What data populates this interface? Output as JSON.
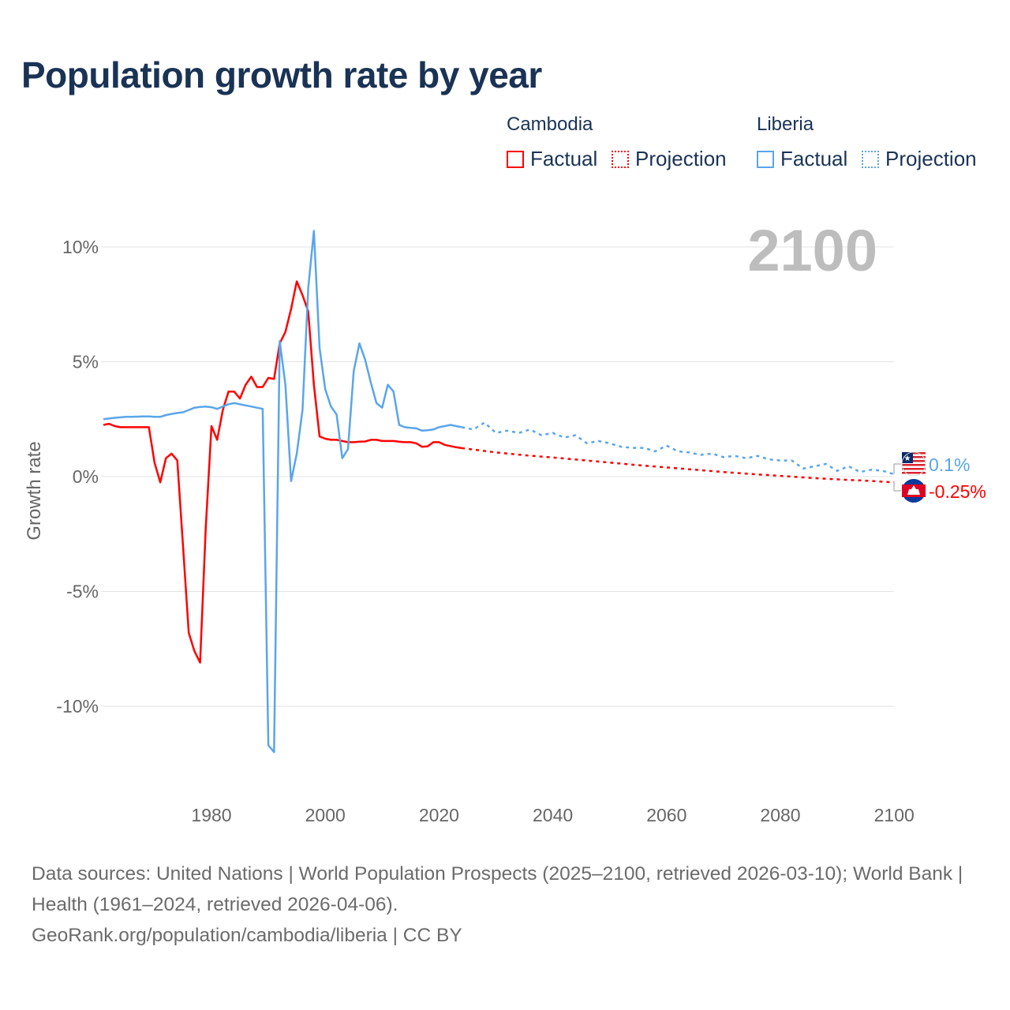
{
  "chart_data": {
    "type": "line",
    "title": "Population growth rate by year",
    "ylabel": "Growth rate",
    "xlabel": "",
    "xlim": [
      1961,
      2100
    ],
    "ylim": [
      -12.5,
      11
    ],
    "x_ticks": [
      1980,
      2000,
      2020,
      2040,
      2060,
      2080,
      2100
    ],
    "x_tick_labels": [
      "1980",
      "2000",
      "2020",
      "2040",
      "2060",
      "2080",
      "2100"
    ],
    "y_ticks": [
      10,
      5,
      0,
      -5,
      -10
    ],
    "y_tick_labels": [
      "10%",
      "5%",
      "0%",
      "-5%",
      "-10%"
    ],
    "grid": true,
    "year_watermark": "2100",
    "legend": {
      "placement": "top-right",
      "groups": [
        {
          "name": "Cambodia",
          "color": "#ff0000",
          "factual": "Factual",
          "projection": "Projection"
        },
        {
          "name": "Liberia",
          "color": "#5aa5ea",
          "factual": "Factual",
          "projection": "Projection"
        }
      ]
    },
    "series": [
      {
        "name": "Cambodia",
        "color": "#ff0000",
        "end_label": "-0.25%",
        "factual": {
          "x": [
            1961,
            1962,
            1963,
            1964,
            1965,
            1966,
            1967,
            1968,
            1969,
            1970,
            1971,
            1972,
            1973,
            1974,
            1975,
            1976,
            1977,
            1978,
            1979,
            1980,
            1981,
            1982,
            1983,
            1984,
            1985,
            1986,
            1987,
            1988,
            1989,
            1990,
            1991,
            1992,
            1993,
            1994,
            1995,
            1996,
            1997,
            1998,
            1999,
            2000,
            2001,
            2002,
            2003,
            2004,
            2005,
            2006,
            2007,
            2008,
            2009,
            2010,
            2011,
            2012,
            2013,
            2014,
            2015,
            2016,
            2017,
            2018,
            2019,
            2020,
            2021,
            2022,
            2023,
            2024
          ],
          "y": [
            2.25,
            2.3,
            2.2,
            2.15,
            2.15,
            2.15,
            2.15,
            2.15,
            2.15,
            0.6,
            -0.25,
            0.8,
            1.0,
            0.7,
            -3.0,
            -6.8,
            -7.6,
            -8.1,
            -2.2,
            2.2,
            1.6,
            2.9,
            3.7,
            3.7,
            3.4,
            4.0,
            4.35,
            3.9,
            3.9,
            4.3,
            4.25,
            5.8,
            6.3,
            7.3,
            8.5,
            7.9,
            7.2,
            4.0,
            1.75,
            1.65,
            1.6,
            1.6,
            1.55,
            1.5,
            1.5,
            1.52,
            1.53,
            1.6,
            1.6,
            1.55,
            1.55,
            1.55,
            1.52,
            1.5,
            1.5,
            1.45,
            1.3,
            1.32,
            1.5,
            1.5,
            1.38,
            1.33,
            1.28,
            1.24
          ]
        },
        "projection": {
          "x": [
            2024,
            2030,
            2035,
            2040,
            2045,
            2050,
            2055,
            2060,
            2065,
            2070,
            2075,
            2080,
            2085,
            2090,
            2095,
            2100
          ],
          "y": [
            1.24,
            1.05,
            0.93,
            0.83,
            0.72,
            0.61,
            0.5,
            0.4,
            0.3,
            0.2,
            0.11,
            0.03,
            -0.05,
            -0.12,
            -0.18,
            -0.25
          ]
        }
      },
      {
        "name": "Liberia",
        "color": "#5aa5ea",
        "end_label": "0.1%",
        "factual": {
          "x": [
            1961,
            1962,
            1963,
            1964,
            1965,
            1966,
            1967,
            1968,
            1969,
            1970,
            1971,
            1972,
            1973,
            1974,
            1975,
            1976,
            1977,
            1978,
            1979,
            1980,
            1981,
            1982,
            1983,
            1984,
            1985,
            1986,
            1987,
            1988,
            1989,
            1990,
            1991,
            1992,
            1993,
            1994,
            1995,
            1996,
            1997,
            1998,
            1999,
            2000,
            2001,
            2002,
            2003,
            2004,
            2005,
            2006,
            2007,
            2008,
            2009,
            2010,
            2011,
            2012,
            2013,
            2014,
            2015,
            2016,
            2017,
            2018,
            2019,
            2020,
            2021,
            2022,
            2023,
            2024
          ],
          "y": [
            2.5,
            2.53,
            2.56,
            2.58,
            2.6,
            2.6,
            2.61,
            2.62,
            2.62,
            2.6,
            2.6,
            2.68,
            2.73,
            2.77,
            2.8,
            2.9,
            3.0,
            3.03,
            3.05,
            3.02,
            2.95,
            3.05,
            3.15,
            3.2,
            3.15,
            3.1,
            3.05,
            3.0,
            2.95,
            -11.7,
            -12.0,
            5.9,
            4.0,
            -0.2,
            1.0,
            2.9,
            8.2,
            10.7,
            5.6,
            3.8,
            3.05,
            2.7,
            0.8,
            1.2,
            4.6,
            5.8,
            5.1,
            4.1,
            3.2,
            3.0,
            4.0,
            3.7,
            2.25,
            2.15,
            2.12,
            2.1,
            2.0,
            2.02,
            2.05,
            2.15,
            2.2,
            2.25,
            2.2,
            2.15
          ]
        },
        "projection": {
          "x": [
            2024,
            2026,
            2028,
            2030,
            2032,
            2034,
            2036,
            2038,
            2040,
            2042,
            2044,
            2046,
            2048,
            2050,
            2052,
            2054,
            2056,
            2058,
            2060,
            2062,
            2064,
            2066,
            2068,
            2070,
            2072,
            2074,
            2076,
            2078,
            2080,
            2082,
            2084,
            2086,
            2088,
            2090,
            2092,
            2094,
            2096,
            2098,
            2100
          ],
          "y": [
            2.15,
            2.05,
            2.35,
            1.9,
            2.0,
            1.9,
            2.05,
            1.8,
            1.9,
            1.7,
            1.8,
            1.45,
            1.55,
            1.45,
            1.3,
            1.25,
            1.25,
            1.1,
            1.35,
            1.1,
            1.05,
            0.95,
            1.0,
            0.85,
            0.9,
            0.8,
            0.9,
            0.75,
            0.7,
            0.7,
            0.35,
            0.45,
            0.55,
            0.25,
            0.45,
            0.2,
            0.3,
            0.25,
            0.1
          ]
        }
      }
    ]
  },
  "footer": {
    "sources": "Data sources: United Nations | World Population Prospects (2025–2100, retrieved 2026-03-10); World Bank | Health (1961–2024, retrieved 2026-04-06).",
    "credit": "GeoRank.org/population/cambodia/liberia | CC BY"
  }
}
